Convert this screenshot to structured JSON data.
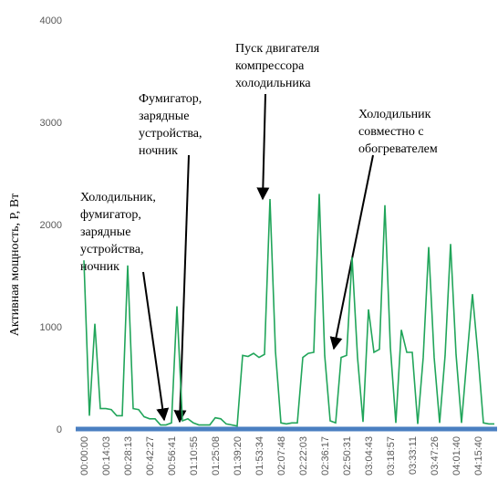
{
  "chart_data": {
    "type": "line",
    "y_label": "Активная мощность, P, Вт",
    "categories": [
      "00:00:00",
      null,
      null,
      null,
      "00:14:03",
      null,
      null,
      null,
      "00:28:13",
      null,
      null,
      null,
      "00:42:27",
      null,
      null,
      null,
      "00:56:41",
      null,
      null,
      null,
      "01:10:55",
      null,
      null,
      null,
      "01:25:08",
      null,
      null,
      null,
      "01:39:20",
      null,
      null,
      null,
      "01:53:34",
      null,
      null,
      null,
      "02:07:48",
      null,
      null,
      null,
      "02:22:03",
      null,
      null,
      null,
      "02:36:17",
      null,
      null,
      null,
      "02:50:31",
      null,
      null,
      null,
      "03:04:43",
      null,
      null,
      null,
      "03:18:57",
      null,
      null,
      null,
      "03:33:11",
      null,
      null,
      null,
      "03:47:26",
      null,
      null,
      null,
      "04:01:40",
      null,
      null,
      null,
      "04:15:40",
      null,
      null,
      null
    ],
    "series": [
      {
        "color": "#21a55a",
        "values": [
          1650,
          130,
          1030,
          200,
          200,
          190,
          130,
          130,
          1600,
          200,
          190,
          120,
          100,
          100,
          40,
          40,
          60,
          1200,
          80,
          100,
          60,
          40,
          40,
          40,
          110,
          100,
          50,
          40,
          30,
          720,
          710,
          740,
          700,
          730,
          2250,
          760,
          60,
          50,
          60,
          60,
          700,
          740,
          750,
          2300,
          720,
          80,
          60,
          700,
          720,
          1680,
          700,
          70,
          1170,
          750,
          780,
          2190,
          800,
          60,
          970,
          750,
          750,
          50,
          700,
          1780,
          700,
          60,
          720,
          1810,
          730,
          60,
          700,
          1320,
          730,
          60,
          50,
          50
        ]
      }
    ],
    "ylim": [
      0,
      4000
    ],
    "yticks": [
      0,
      1000,
      2000,
      3000,
      4000
    ],
    "grid": false,
    "annotations": [
      {
        "lines": [
          "Холодильник,",
          "фумигатор,",
          "зарядные",
          "устройства,",
          "ночник"
        ]
      },
      {
        "lines": [
          "Фумигатор,",
          "зарядные",
          "устройства,",
          "ночник"
        ]
      },
      {
        "lines": [
          "Пуск двигателя",
          "компрессора",
          "холодильника"
        ]
      },
      {
        "lines": [
          "Холодильник",
          "совместно с",
          "обогревателем"
        ]
      }
    ]
  }
}
